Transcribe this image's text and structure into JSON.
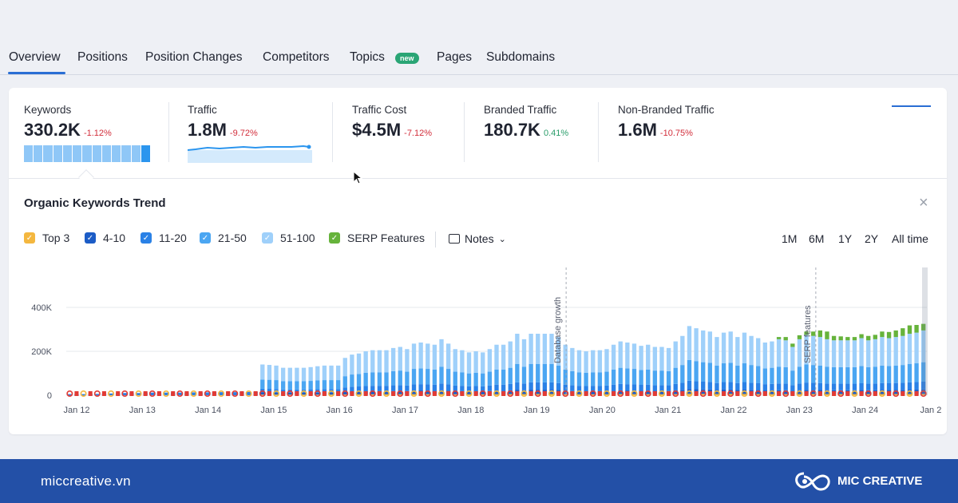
{
  "tabs": [
    {
      "label": "Overview",
      "active": true
    },
    {
      "label": "Positions"
    },
    {
      "label": "Position Changes"
    },
    {
      "label": "Competitors"
    },
    {
      "label": "Topics",
      "badge": "new"
    },
    {
      "label": "Pages"
    },
    {
      "label": "Subdomains"
    }
  ],
  "metrics": [
    {
      "label": "Keywords",
      "value": "330.2K",
      "change": "-1.12%"
    },
    {
      "label": "Traffic",
      "value": "1.8M",
      "change": "-9.72%"
    },
    {
      "label": "Traffic Cost",
      "value": "$4.5M",
      "change": "-7.12%"
    },
    {
      "label": "Branded Traffic",
      "value": "180.7K",
      "change": "0.41%"
    },
    {
      "label": "Non-Branded Traffic",
      "value": "1.6M",
      "change": "-10.75%"
    }
  ],
  "trend": {
    "title": "Organic Keywords Trend",
    "legend": [
      {
        "label": "Top 3",
        "color": "#f4b73f"
      },
      {
        "label": "4-10",
        "color": "#1c5cc6"
      },
      {
        "label": "11-20",
        "color": "#2a81e6"
      },
      {
        "label": "21-50",
        "color": "#4ba6f2"
      },
      {
        "label": "51-100",
        "color": "#9fd0fa"
      },
      {
        "label": "SERP Features",
        "color": "#66b33b"
      }
    ],
    "notes_label": "Notes",
    "ranges": [
      "1M",
      "6M",
      "1Y",
      "2Y",
      "All time"
    ],
    "active_range": "All time"
  },
  "chart_data": {
    "type": "bar",
    "title": "Organic Keywords Trend",
    "x_ticks": [
      "Jan 12",
      "Jan 13",
      "Jan 14",
      "Jan 15",
      "Jan 16",
      "Jan 17",
      "Jan 18",
      "Jan 19",
      "Jan 20",
      "Jan 21",
      "Jan 22",
      "Jan 23",
      "Jan 24",
      "Jan 2"
    ],
    "y_ticks": [
      "0",
      "200K",
      "400K"
    ],
    "ylim": [
      0,
      500000
    ],
    "annotations": [
      {
        "label": "Database growth",
        "x_index": 7.45
      },
      {
        "label": "SERP features",
        "x_index": 11.25
      }
    ],
    "totals": [
      5000,
      5000,
      5000,
      6000,
      6000,
      8000,
      8000,
      10000,
      10000,
      10000,
      10000,
      12000,
      12000,
      12000,
      12000,
      12000,
      12000,
      12000,
      13000,
      13000,
      13000,
      14000,
      14000,
      14000,
      14000,
      15000,
      15000,
      15000,
      140000,
      138000,
      135000,
      125000,
      125000,
      125000,
      125000,
      128000,
      132000,
      135000,
      135000,
      135000,
      170000,
      185000,
      190000,
      200000,
      205000,
      205000,
      205000,
      215000,
      220000,
      210000,
      235000,
      240000,
      235000,
      230000,
      255000,
      235000,
      210000,
      205000,
      195000,
      200000,
      195000,
      210000,
      230000,
      230000,
      245000,
      280000,
      255000,
      280000,
      280000,
      280000,
      280000,
      265000,
      230000,
      215000,
      205000,
      200000,
      205000,
      205000,
      210000,
      230000,
      245000,
      240000,
      235000,
      225000,
      230000,
      220000,
      220000,
      215000,
      245000,
      270000,
      315000,
      305000,
      295000,
      290000,
      265000,
      285000,
      290000,
      265000,
      285000,
      270000,
      260000,
      240000,
      245000,
      255000,
      250000,
      220000,
      255000,
      275000,
      270000,
      265000,
      255000,
      250000,
      250000,
      250000,
      250000,
      260000,
      250000,
      255000,
      265000,
      260000,
      265000,
      270000,
      280000,
      285000,
      295000
    ],
    "serp": [
      0,
      0,
      0,
      0,
      0,
      0,
      0,
      0,
      0,
      0,
      0,
      0,
      0,
      0,
      0,
      0,
      0,
      0,
      0,
      0,
      0,
      0,
      0,
      0,
      0,
      0,
      0,
      0,
      0,
      0,
      0,
      0,
      0,
      0,
      0,
      0,
      0,
      0,
      0,
      0,
      0,
      0,
      0,
      0,
      0,
      0,
      0,
      0,
      0,
      0,
      0,
      0,
      0,
      0,
      0,
      0,
      0,
      0,
      0,
      0,
      0,
      0,
      0,
      0,
      0,
      0,
      0,
      0,
      0,
      0,
      0,
      0,
      0,
      0,
      0,
      0,
      0,
      0,
      0,
      0,
      0,
      0,
      0,
      0,
      0,
      0,
      0,
      0,
      0,
      0,
      0,
      0,
      0,
      0,
      0,
      0,
      0,
      0,
      0,
      0,
      0,
      0,
      0,
      10000,
      15000,
      15000,
      18000,
      15000,
      20000,
      30000,
      35000,
      20000,
      18000,
      15000,
      15000,
      18000,
      20000,
      20000,
      25000,
      28000,
      30000,
      35000,
      38000,
      35000,
      30000
    ]
  },
  "footer": {
    "site": "miccreative.vn",
    "brand": "MIC CREATIVE"
  }
}
